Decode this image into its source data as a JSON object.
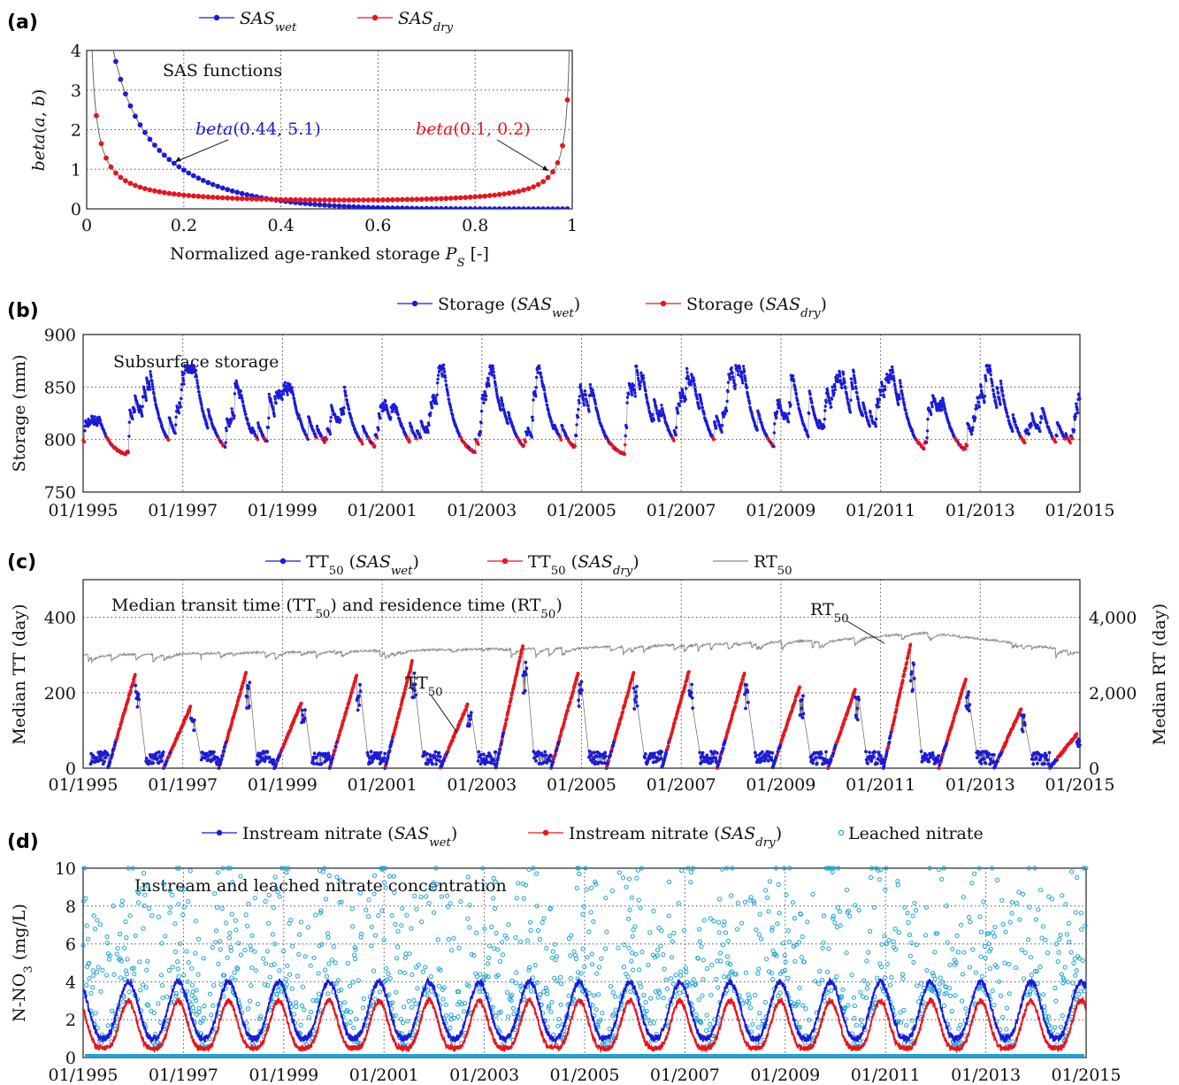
{
  "figure": {
    "colors": {
      "wet": "#1a1adb",
      "dry": "#e8141c",
      "leached": "#1ba3d9",
      "rt": "#8a8a8a"
    }
  },
  "chart_data": [
    {
      "panel": "(a)",
      "type": "line",
      "annotation": "SAS functions",
      "ylabel": "beta(a, b)",
      "xlabel": "Normalized age-ranked storage P_S [-]",
      "xlim": [
        0,
        1
      ],
      "ylim": [
        0,
        4
      ],
      "xticks": [
        "0",
        "0.2",
        "0.4",
        "0.6",
        "0.8",
        "1"
      ],
      "yticks": [
        "0",
        "1",
        "2",
        "3",
        "4"
      ],
      "grid": true,
      "legend_position": "top",
      "series": [
        {
          "name": "SAS_wet",
          "label": "beta(0.44, 5.1)",
          "a": 0.44,
          "b": 5.1,
          "x": [
            0.02,
            0.05,
            0.08,
            0.1,
            0.15,
            0.2,
            0.3,
            0.4,
            0.5,
            0.6,
            0.7,
            0.8,
            0.9,
            1.0
          ],
          "y": [
            4.1,
            3.75,
            2.95,
            2.65,
            1.8,
            1.35,
            0.7,
            0.32,
            0.15,
            0.06,
            0.02,
            0.0,
            0.0,
            0.0
          ]
        },
        {
          "name": "SAS_dry",
          "label": "beta(0.1, 0.2)",
          "a": 0.1,
          "b": 0.2,
          "x": [
            0.02,
            0.04,
            0.06,
            0.1,
            0.2,
            0.3,
            0.4,
            0.5,
            0.6,
            0.7,
            0.8,
            0.9,
            0.95,
            0.98,
            0.99
          ],
          "y": [
            2.45,
            1.7,
            1.3,
            0.85,
            0.48,
            0.33,
            0.26,
            0.23,
            0.23,
            0.25,
            0.32,
            0.52,
            0.85,
            1.35,
            2.3
          ]
        }
      ]
    },
    {
      "panel": "(b)",
      "type": "line",
      "annotation": "Subsurface storage",
      "ylabel": "Storage (mm)",
      "ylim": [
        750,
        900
      ],
      "yticks": [
        "750",
        "800",
        "850",
        "900"
      ],
      "xticks": [
        "01/1995",
        "01/1997",
        "01/1999",
        "01/2001",
        "01/2003",
        "01/2005",
        "01/2007",
        "01/2009",
        "01/2011",
        "01/2013",
        "01/2015"
      ],
      "x_range": [
        "1995-01",
        "2015-01"
      ],
      "grid": true,
      "legend_position": "top",
      "series": [
        {
          "name": "Storage (SAS_wet)"
        },
        {
          "name": "Storage (SAS_dry)"
        }
      ],
      "annual_pattern_mm": {
        "winter_peak": 835,
        "summer_min": 782
      }
    },
    {
      "panel": "(c)",
      "type": "line",
      "annotation": "Median transit time (TT50) and residence time (RT50)",
      "ylabel": "Median TT (day)",
      "ylabel_right": "Median RT (day)",
      "ylim": [
        0,
        500
      ],
      "ylim_right": [
        0,
        5000
      ],
      "yticks": [
        "0",
        "200",
        "400"
      ],
      "yticks_right": [
        "0",
        "2,000",
        "4,000"
      ],
      "xticks": [
        "01/1995",
        "01/1997",
        "01/1999",
        "01/2001",
        "01/2003",
        "01/2005",
        "01/2007",
        "01/2009",
        "01/2011",
        "01/2013",
        "01/2015"
      ],
      "labels": {
        "tt": "TT50",
        "rt": "RT50"
      },
      "grid": true,
      "legend_position": "top",
      "series": [
        {
          "name": "TT50 (SAS_wet)"
        },
        {
          "name": "TT50 (SAS_dry)"
        },
        {
          "name": "RT50"
        }
      ],
      "tt50_annual_peaks_day": [
        250,
        165,
        255,
        175,
        250,
        285,
        170,
        330,
        255,
        255,
        260,
        255,
        220,
        210,
        330,
        240,
        160,
        90
      ],
      "rt50_day": {
        "1995": 3000,
        "2005": 3200,
        "2010": 3400,
        "2012": 3600,
        "2015": 3100
      }
    },
    {
      "panel": "(d)",
      "type": "scatter",
      "annotation": "Instream and leached nitrate concentration",
      "ylabel": "N-NO3 (mg/L)",
      "ylim": [
        0,
        10
      ],
      "yticks": [
        "0",
        "2",
        "4",
        "6",
        "8",
        "10"
      ],
      "xticks": [
        "01/1995",
        "01/1997",
        "01/1999",
        "01/2001",
        "01/2003",
        "01/2005",
        "01/2007",
        "01/2009",
        "01/2011",
        "01/2013",
        "01/2015"
      ],
      "grid": true,
      "legend_position": "top",
      "series": [
        {
          "name": "Instream nitrate (SAS_wet)"
        },
        {
          "name": "Instream nitrate (SAS_dry)"
        },
        {
          "name": "Leached nitrate"
        }
      ],
      "instream_range_mg_per_L": {
        "wet": [
          1.0,
          4.0
        ],
        "dry": [
          0.5,
          3.0
        ]
      }
    }
  ],
  "panel_labels": {
    "a": "(a)",
    "b": "(b)",
    "c": "(c)",
    "d": "(d)"
  }
}
